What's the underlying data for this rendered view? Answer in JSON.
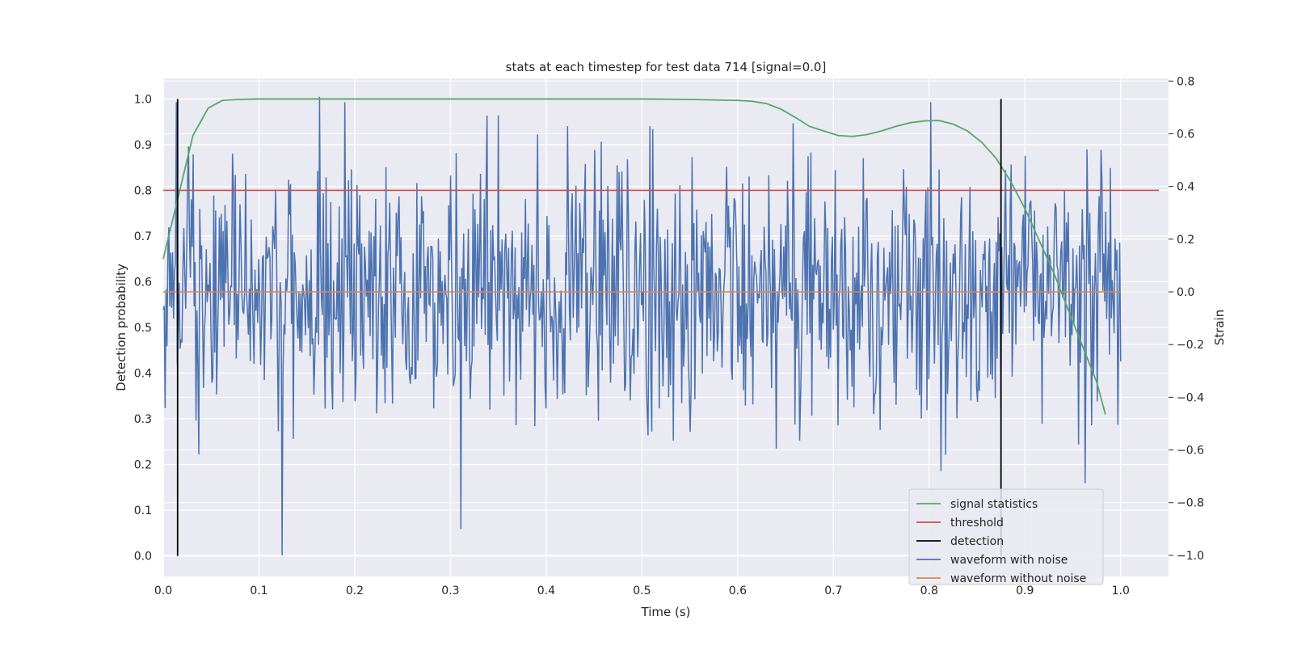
{
  "chart_data": {
    "type": "line",
    "title": "stats at each timestep for test data 714 [signal=0.0]",
    "xlabel": "Time (s)",
    "ylabel": "Detection probability",
    "y2label": "Strain",
    "xlim": [
      0.0,
      1.05
    ],
    "ylim": [
      -0.045,
      1.045
    ],
    "y2lim": [
      -1.08,
      0.81
    ],
    "xticks": [
      0.0,
      0.1,
      0.2,
      0.3,
      0.4,
      0.5,
      0.6,
      0.7,
      0.8,
      0.9,
      1.0
    ],
    "xtick_labels": [
      "0.0",
      "0.1",
      "0.2",
      "0.3",
      "0.4",
      "0.5",
      "0.6",
      "0.7",
      "0.8",
      "0.9",
      "1.0"
    ],
    "yticks": [
      0.0,
      0.1,
      0.2,
      0.3,
      0.4,
      0.5,
      0.6,
      0.7,
      0.8,
      0.9,
      1.0
    ],
    "ytick_labels": [
      "0.0",
      "0.1",
      "0.2",
      "0.3",
      "0.4",
      "0.5",
      "0.6",
      "0.7",
      "0.8",
      "0.9",
      "1.0"
    ],
    "y2ticks": [
      -1.0,
      -0.8,
      -0.6,
      -0.4,
      -0.2,
      0.0,
      0.2,
      0.4,
      0.6,
      0.8
    ],
    "y2tick_labels": [
      "−1.0",
      "−0.8",
      "−0.6",
      "−0.4",
      "−0.2",
      "0.0",
      "0.2",
      "0.4",
      "0.6",
      "0.8"
    ],
    "grid": true,
    "legend_position": "lower-right",
    "series": [
      {
        "name": "signal statistics",
        "axis": "left",
        "color": "#55a868",
        "x": [
          0.0,
          0.015,
          0.031,
          0.047,
          0.062,
          0.078,
          0.1,
          0.2,
          0.3,
          0.4,
          0.5,
          0.55,
          0.6,
          0.615,
          0.63,
          0.645,
          0.66,
          0.675,
          0.69,
          0.705,
          0.72,
          0.735,
          0.75,
          0.765,
          0.78,
          0.795,
          0.81,
          0.825,
          0.84,
          0.855,
          0.87,
          0.885,
          0.9,
          0.915,
          0.93,
          0.945,
          0.96,
          0.975,
          0.984
        ],
        "y": [
          0.65,
          0.78,
          0.92,
          0.98,
          0.997,
          0.999,
          1.0,
          1.0,
          1.0,
          1.0,
          1.0,
          0.999,
          0.997,
          0.995,
          0.99,
          0.978,
          0.96,
          0.94,
          0.93,
          0.92,
          0.918,
          0.922,
          0.93,
          0.94,
          0.948,
          0.952,
          0.953,
          0.945,
          0.93,
          0.905,
          0.87,
          0.82,
          0.76,
          0.69,
          0.62,
          0.54,
          0.46,
          0.38,
          0.31
        ]
      },
      {
        "name": "threshold",
        "axis": "left",
        "color": "#c44e52",
        "x": [
          0.0,
          1.04
        ],
        "y": [
          0.8,
          0.8
        ]
      },
      {
        "name": "detection",
        "axis": "left",
        "color": "#000000",
        "segments": [
          {
            "x": 0.015,
            "y": [
              0.0,
              1.0
            ]
          },
          {
            "x": 0.875,
            "y": [
              0.0,
              1.0
            ]
          }
        ]
      },
      {
        "name": "waveform with noise",
        "axis": "right",
        "color": "#4c72b0",
        "x_range": [
          0.0,
          1.0
        ],
        "samples": 1024,
        "y_range_observed": [
          -1.0,
          0.74
        ],
        "notable_points": [
          {
            "x": 0.124,
            "y": -1.0
          },
          {
            "x": 0.163,
            "y": 0.74
          },
          {
            "x": 0.35,
            "y": 0.67
          },
          {
            "x": 0.812,
            "y": -0.68
          }
        ]
      },
      {
        "name": "waveform without noise",
        "axis": "right",
        "color": "#dd8452",
        "x": [
          0.0,
          1.0
        ],
        "y": [
          0.0,
          0.0
        ]
      }
    ]
  }
}
